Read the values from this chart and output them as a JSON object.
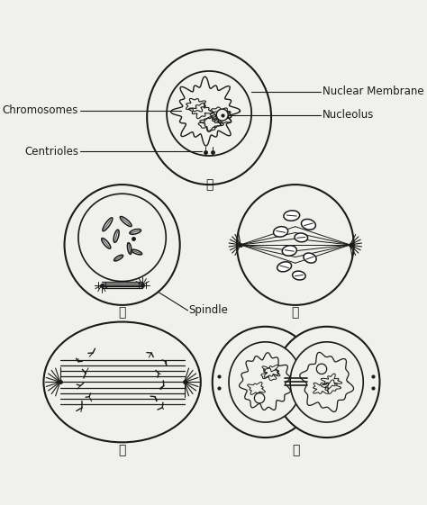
{
  "bg_color": "#f0f0ec",
  "line_color": "#1a1a1a",
  "white": "#ffffff",
  "gray": "#888888",
  "labels": {
    "chromosomes": "Chromosomes",
    "nuclear_membrane": "Nuclear Membrane",
    "nucleolus": "Nucleolus",
    "centrioles": "Centrioles",
    "spindle": "Spindle",
    "A": "Ⓐ",
    "B": "Ⓑ",
    "C": "Ⓒ",
    "D": "Ⓓ",
    "E": "Ⓔ"
  },
  "font_size_label": 8.5,
  "font_size_letter": 9
}
